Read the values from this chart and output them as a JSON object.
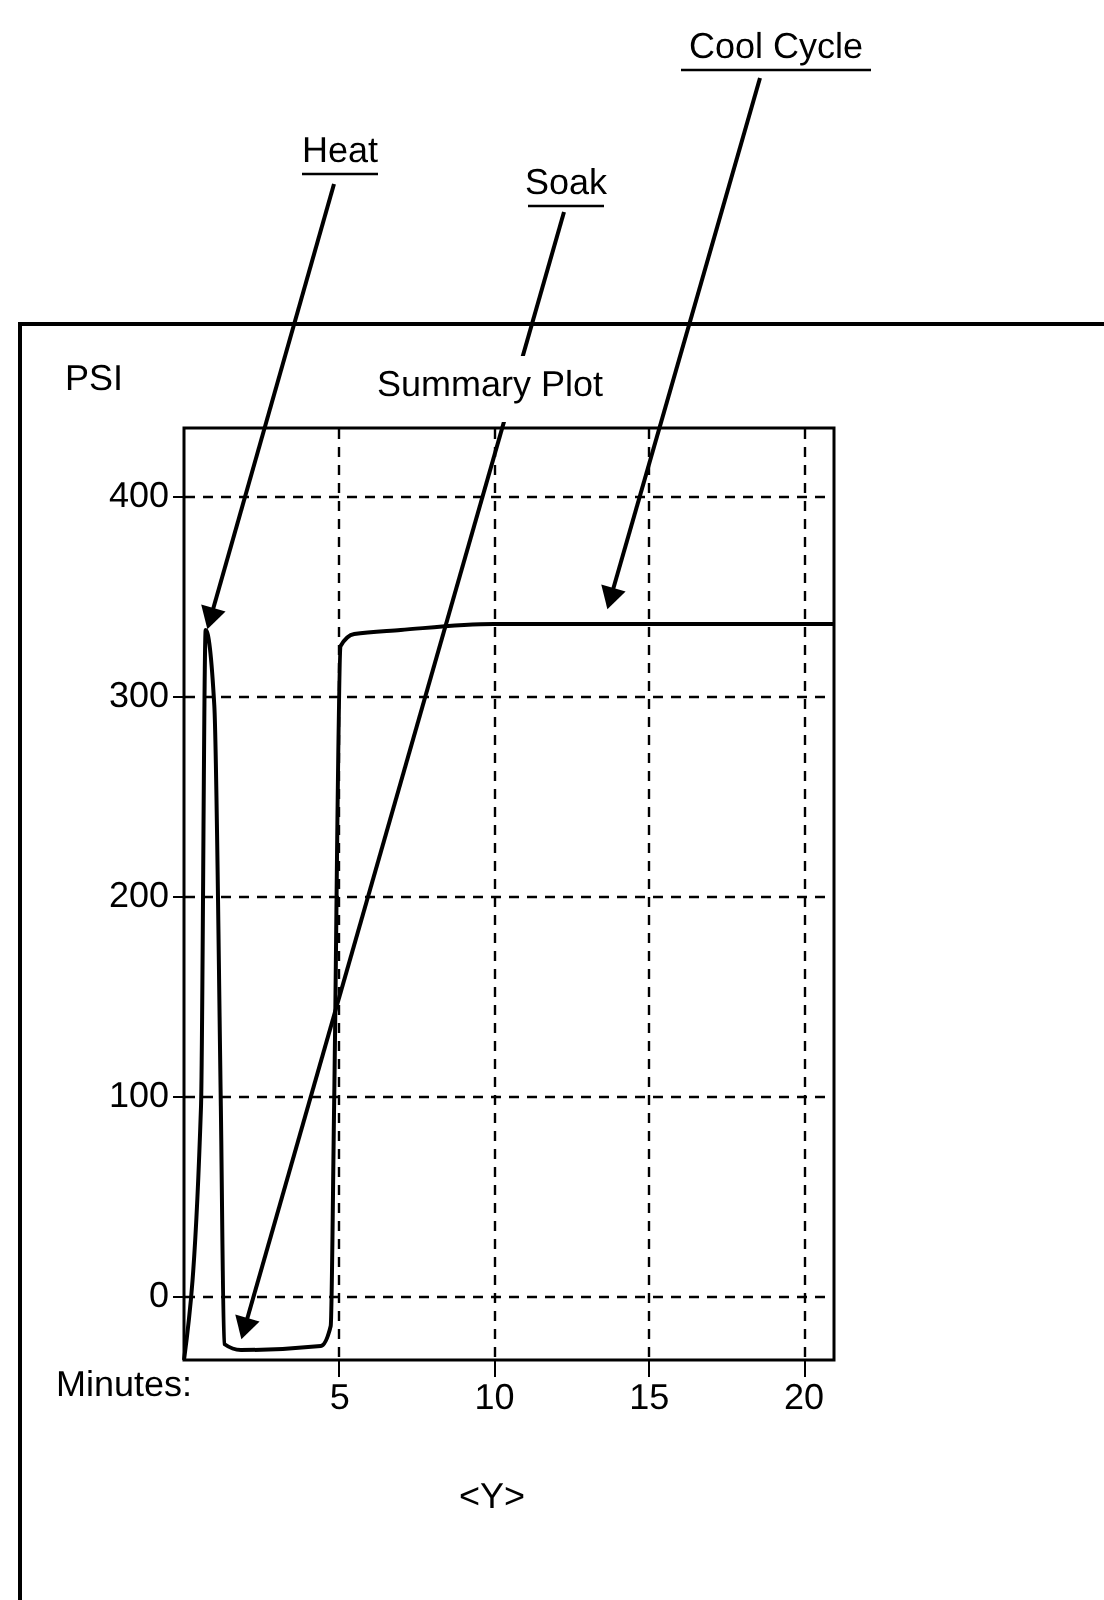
{
  "chart_data": {
    "type": "line",
    "title": "Summary Plot",
    "xlabel": "Minutes:",
    "ylabel": "PSI",
    "x": [
      0,
      0.55,
      0.7,
      0.98,
      1.19,
      1.3,
      1.84,
      4.42,
      4.74,
      4.85,
      5.06,
      5.5,
      7.0,
      10,
      21
    ],
    "series": [
      {
        "color": "#000000",
        "values": [
          -32,
          95,
          333,
          295,
          95,
          -24,
          -27,
          -25,
          -15,
          95,
          325,
          331,
          333,
          336,
          336
        ]
      }
    ],
    "xlim": [
      0,
      21
    ],
    "xticks": [
      5,
      10,
      15,
      20
    ],
    "ylim": [
      -32,
      434
    ],
    "yticks": [
      0,
      100,
      200,
      300,
      400
    ],
    "grid": true,
    "line_style": "solid",
    "marker": "none",
    "annotations": [
      "Heat",
      "Soak",
      "Cool Cycle",
      "<Y>"
    ]
  }
}
